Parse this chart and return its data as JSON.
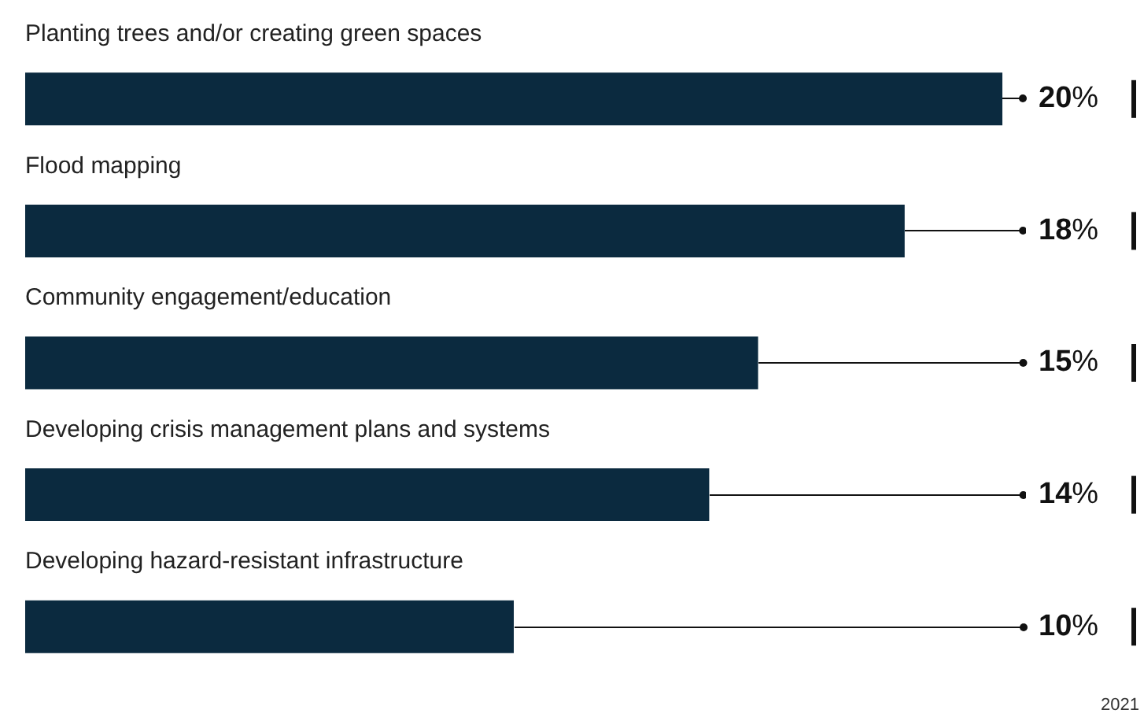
{
  "chart_data": {
    "type": "bar",
    "orientation": "horizontal",
    "categories": [
      "Planting trees and/or creating green spaces",
      "Flood mapping",
      "Community engagement/education",
      "Developing crisis management plans and systems",
      "Developing hazard-resistant infrastructure"
    ],
    "values": [
      20,
      18,
      15,
      14,
      10
    ],
    "value_labels": [
      "20%",
      "18%",
      "15%",
      "14%",
      "10%"
    ],
    "color": "#0b2a3f",
    "xlim": [
      0,
      20
    ],
    "legend": false,
    "tick_labels": false,
    "annotations": [
      "2021"
    ]
  }
}
